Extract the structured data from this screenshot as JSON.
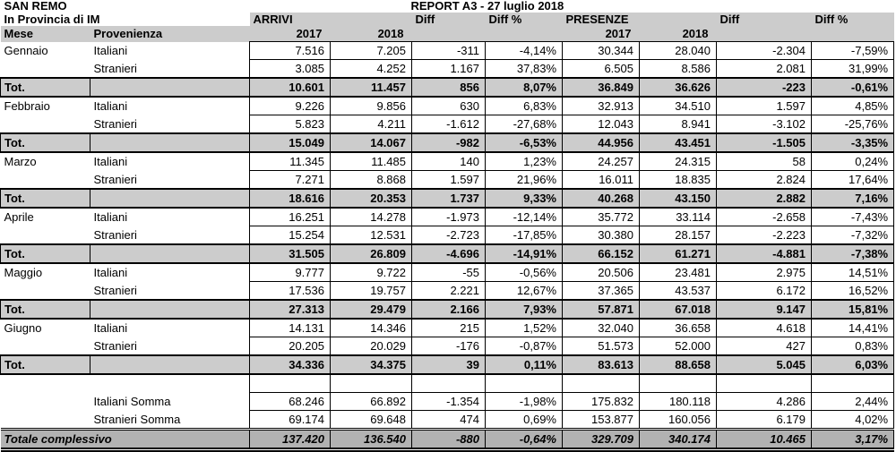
{
  "titles": {
    "location": "SAN REMO",
    "province": "In Provincia di IM",
    "report": "REPORT A3 - 27 luglio 2018"
  },
  "header": {
    "arrivi": "ARRIVI",
    "presenze": "PRESENZE",
    "diff": "Diff",
    "diff_pct": "Diff %",
    "mese": "Mese",
    "provenienza": "Provenienza",
    "y2017": "2017",
    "y2018": "2018"
  },
  "colors": {
    "header_gray": "#cccccc",
    "grand_total_gray": "#b2b2b2",
    "border": "#000000"
  },
  "months": [
    {
      "name": "Gennaio",
      "rows": [
        {
          "label": "Italiani",
          "values": [
            "7.516",
            "7.205",
            "-311",
            "-4,14%",
            "30.344",
            "28.040",
            "-2.304",
            "-7,59%"
          ]
        },
        {
          "label": "Stranieri",
          "values": [
            "3.085",
            "4.252",
            "1.167",
            "37,83%",
            "6.505",
            "8.586",
            "2.081",
            "31,99%"
          ]
        }
      ],
      "total": {
        "label": "Tot.",
        "values": [
          "10.601",
          "11.457",
          "856",
          "8,07%",
          "36.849",
          "36.626",
          "-223",
          "-0,61%"
        ]
      }
    },
    {
      "name": "Febbraio",
      "rows": [
        {
          "label": "Italiani",
          "values": [
            "9.226",
            "9.856",
            "630",
            "6,83%",
            "32.913",
            "34.510",
            "1.597",
            "4,85%"
          ]
        },
        {
          "label": "Stranieri",
          "values": [
            "5.823",
            "4.211",
            "-1.612",
            "-27,68%",
            "12.043",
            "8.941",
            "-3.102",
            "-25,76%"
          ]
        }
      ],
      "total": {
        "label": "Tot.",
        "values": [
          "15.049",
          "14.067",
          "-982",
          "-6,53%",
          "44.956",
          "43.451",
          "-1.505",
          "-3,35%"
        ]
      }
    },
    {
      "name": "Marzo",
      "rows": [
        {
          "label": "Italiani",
          "values": [
            "11.345",
            "11.485",
            "140",
            "1,23%",
            "24.257",
            "24.315",
            "58",
            "0,24%"
          ]
        },
        {
          "label": "Stranieri",
          "values": [
            "7.271",
            "8.868",
            "1.597",
            "21,96%",
            "16.011",
            "18.835",
            "2.824",
            "17,64%"
          ]
        }
      ],
      "total": {
        "label": "Tot.",
        "values": [
          "18.616",
          "20.353",
          "1.737",
          "9,33%",
          "40.268",
          "43.150",
          "2.882",
          "7,16%"
        ]
      }
    },
    {
      "name": "Aprile",
      "rows": [
        {
          "label": "Italiani",
          "values": [
            "16.251",
            "14.278",
            "-1.973",
            "-12,14%",
            "35.772",
            "33.114",
            "-2.658",
            "-7,43%"
          ]
        },
        {
          "label": "Stranieri",
          "values": [
            "15.254",
            "12.531",
            "-2.723",
            "-17,85%",
            "30.380",
            "28.157",
            "-2.223",
            "-7,32%"
          ]
        }
      ],
      "total": {
        "label": "Tot.",
        "values": [
          "31.505",
          "26.809",
          "-4.696",
          "-14,91%",
          "66.152",
          "61.271",
          "-4.881",
          "-7,38%"
        ]
      }
    },
    {
      "name": "Maggio",
      "rows": [
        {
          "label": "Italiani",
          "values": [
            "9.777",
            "9.722",
            "-55",
            "-0,56%",
            "20.506",
            "23.481",
            "2.975",
            "14,51%"
          ]
        },
        {
          "label": "Stranieri",
          "values": [
            "17.536",
            "19.757",
            "2.221",
            "12,67%",
            "37.365",
            "43.537",
            "6.172",
            "16,52%"
          ]
        }
      ],
      "total": {
        "label": "Tot.",
        "values": [
          "27.313",
          "29.479",
          "2.166",
          "7,93%",
          "57.871",
          "67.018",
          "9.147",
          "15,81%"
        ]
      }
    },
    {
      "name": "Giugno",
      "rows": [
        {
          "label": "Italiani",
          "values": [
            "14.131",
            "14.346",
            "215",
            "1,52%",
            "32.040",
            "36.658",
            "4.618",
            "14,41%"
          ]
        },
        {
          "label": "Stranieri",
          "values": [
            "20.205",
            "20.029",
            "-176",
            "-0,87%",
            "51.573",
            "52.000",
            "427",
            "0,83%"
          ]
        }
      ],
      "total": {
        "label": "Tot.",
        "values": [
          "34.336",
          "34.375",
          "39",
          "0,11%",
          "83.613",
          "88.658",
          "5.045",
          "6,03%"
        ]
      }
    }
  ],
  "summary": {
    "rows": [
      {
        "label": "Italiani Somma",
        "values": [
          "68.246",
          "66.892",
          "-1.354",
          "-1,98%",
          "175.832",
          "180.118",
          "4.286",
          "2,44%"
        ]
      },
      {
        "label": "Stranieri Somma",
        "values": [
          "69.174",
          "69.648",
          "474",
          "0,69%",
          "153.877",
          "160.056",
          "6.179",
          "4,02%"
        ]
      }
    ],
    "grand_total": {
      "label": "Totale complessivo",
      "values": [
        "137.420",
        "136.540",
        "-880",
        "-0,64%",
        "329.709",
        "340.174",
        "10.465",
        "3,17%"
      ]
    }
  }
}
